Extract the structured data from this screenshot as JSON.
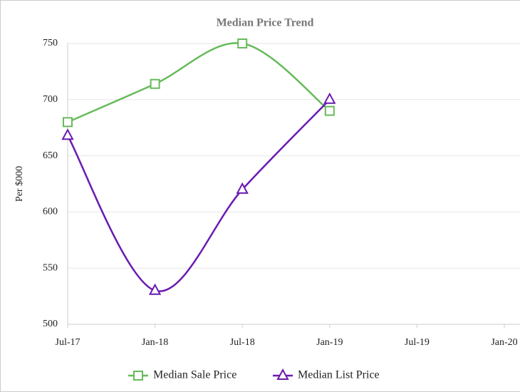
{
  "chart_data": {
    "type": "line",
    "title": "Median Price Trend",
    "y_label": "Per $000",
    "categories": [
      "Jul-17",
      "Jan-18",
      "Jul-18",
      "Jan-19",
      "Jul-19",
      "Jan-20"
    ],
    "series": [
      {
        "name": "Median Sale Price",
        "color": "#66bb5a",
        "marker": "square",
        "values": [
          680,
          714,
          750,
          690,
          null,
          null
        ]
      },
      {
        "name": "Median List Price",
        "color": "#6a1bb0",
        "marker": "triangle",
        "values": [
          668,
          530,
          620,
          700,
          null,
          null
        ]
      }
    ],
    "ylim": [
      500,
      750
    ],
    "yticks": [
      500,
      550,
      600,
      650,
      700,
      750
    ],
    "grid": true,
    "legend": "bottom"
  }
}
